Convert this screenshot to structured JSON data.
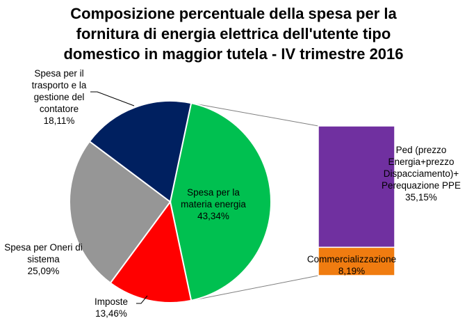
{
  "chart_data": {
    "type": "pie",
    "title_lines": [
      "Composizione percentuale della spesa per la",
      "fornitura di energia elettrica dell'utente tipo",
      "domestico in maggior tutela - IV trimestre 2016"
    ],
    "slices": [
      {
        "label_lines": [
          "Spesa per la",
          "materia energia"
        ],
        "value_text": "43,34%",
        "value": 43.34,
        "color": "#00c050"
      },
      {
        "label_lines": [
          "Imposte"
        ],
        "value_text": "13,46%",
        "value": 13.46,
        "color": "#ff0000"
      },
      {
        "label_lines": [
          "Spesa per Oneri di",
          "sistema"
        ],
        "value_text": "25,09%",
        "value": 25.09,
        "color": "#969696"
      },
      {
        "label_lines": [
          "Spesa per il",
          "trasporto e la",
          "gestione del",
          "contatore"
        ],
        "value_text": "18,11%",
        "value": 18.11,
        "color": "#002060"
      }
    ],
    "breakdown_of": "Spesa per la materia energia",
    "breakdown": [
      {
        "label_lines": [
          "Ped (prezzo",
          "Energia+prezzo",
          "Dispacciamento)+",
          "Perequazione PPE"
        ],
        "value_text": "35,15%",
        "value": 35.15,
        "color": "#7030a0"
      },
      {
        "label_lines": [
          "Commercializzazione"
        ],
        "value_text": "8,19%",
        "value": 8.19,
        "color": "#f07c10"
      }
    ]
  }
}
